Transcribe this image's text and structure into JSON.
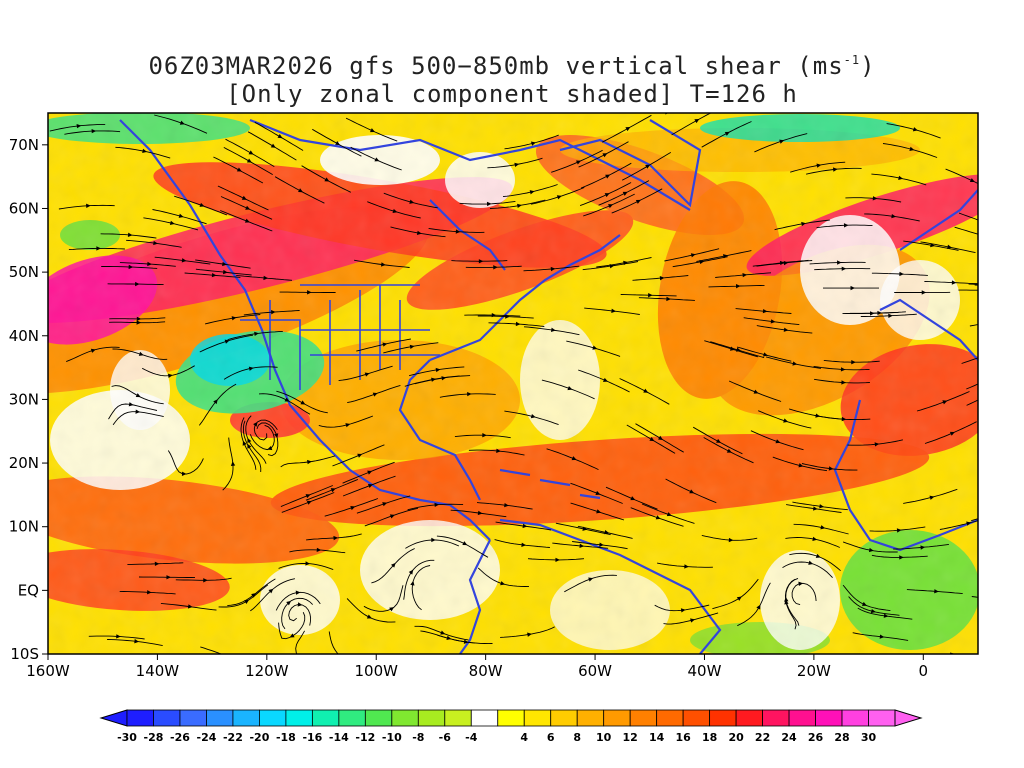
{
  "title": {
    "line1_prefix": "06Z03MAR2026 gfs 500−850mb vertical shear (ms",
    "line1_sup": "-1",
    "line1_suffix": ")",
    "line2": "[Only zonal component shaded] T=126 h"
  },
  "map": {
    "lon_range": [
      -160,
      10
    ],
    "lat_range": [
      -10,
      75
    ],
    "x_ticks": [
      {
        "value": -160,
        "label": "160W"
      },
      {
        "value": -140,
        "label": "140W"
      },
      {
        "value": -120,
        "label": "120W"
      },
      {
        "value": -100,
        "label": "100W"
      },
      {
        "value": -80,
        "label": "80W"
      },
      {
        "value": -60,
        "label": "60W"
      },
      {
        "value": -40,
        "label": "40W"
      },
      {
        "value": -20,
        "label": "20W"
      },
      {
        "value": 0,
        "label": "0"
      }
    ],
    "y_ticks": [
      {
        "value": 70,
        "label": "70N"
      },
      {
        "value": 60,
        "label": "60N"
      },
      {
        "value": 50,
        "label": "50N"
      },
      {
        "value": 40,
        "label": "40N"
      },
      {
        "value": 30,
        "label": "30N"
      },
      {
        "value": 20,
        "label": "20N"
      },
      {
        "value": 10,
        "label": "10N"
      },
      {
        "value": 0,
        "label": "EQ"
      },
      {
        "value": -10,
        "label": "10S"
      }
    ],
    "colors": {
      "coastline": "#3344dd",
      "streamline": "#000000",
      "frame": "#000000"
    }
  },
  "colorbar": {
    "labels": [
      "-30",
      "-28",
      "-26",
      "-24",
      "-22",
      "-20",
      "-18",
      "-16",
      "-14",
      "-12",
      "-10",
      "-8",
      "-6",
      "-4",
      "4",
      "6",
      "8",
      "10",
      "12",
      "14",
      "16",
      "18",
      "20",
      "22",
      "24",
      "26",
      "28",
      "30"
    ],
    "colors": [
      "#1e1eff",
      "#2a4cff",
      "#3a6cff",
      "#2a90ff",
      "#1ab4ff",
      "#0ad8ff",
      "#00f0e8",
      "#10f0b0",
      "#30ec80",
      "#50e850",
      "#80e830",
      "#a8ec20",
      "#c8f020",
      "#ffffff",
      "#ffff00",
      "#ffe600",
      "#ffcc00",
      "#ffb000",
      "#ff9a00",
      "#ff8000",
      "#ff6a00",
      "#ff5000",
      "#ff3200",
      "#ff1a20",
      "#ff1460",
      "#ff1090",
      "#ff10b8",
      "#ff40e0",
      "#ff60f0"
    ]
  }
}
